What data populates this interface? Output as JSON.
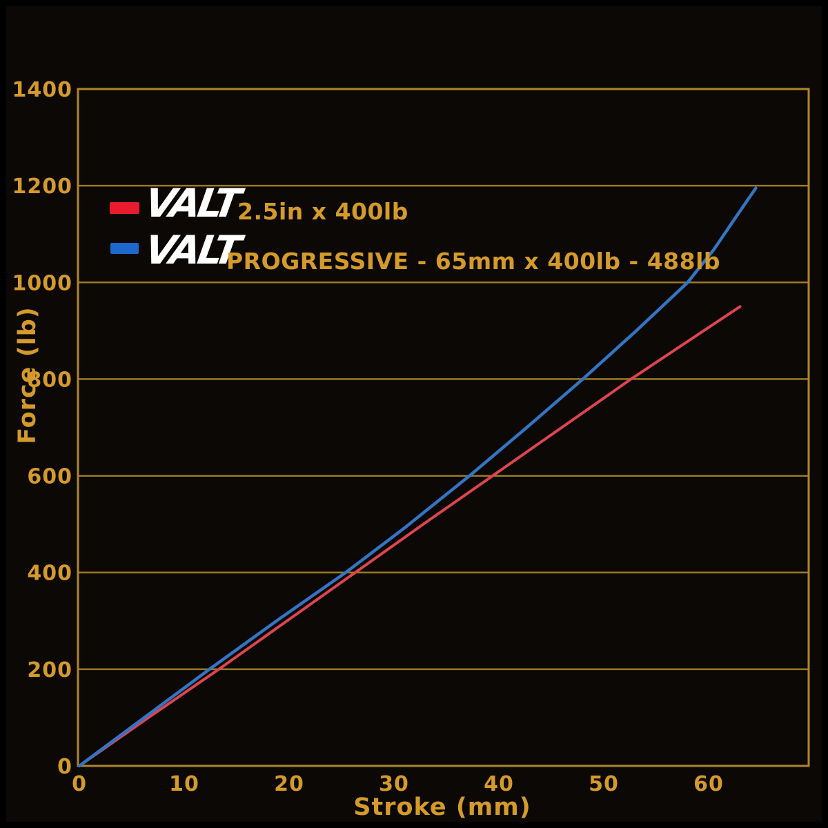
{
  "figure": {
    "bg_color": "#0b0806",
    "frame_color": "#000000",
    "grid_color": "#9c7a24",
    "border_color": "#b18629",
    "label_color": "#d49a2b",
    "logo_color": "#ffffff"
  },
  "legend": {
    "items": [
      {
        "logo": "VALT",
        "label": "2.5in x 400lb",
        "swatch_color": "#ea1b2d",
        "line_color": "#dd454f"
      },
      {
        "logo": "VALT",
        "label": "PROGRESSIVE - 65mm x 400lb - 488lb",
        "swatch_color": "#1d68cb",
        "line_color": "#3474c2"
      }
    ]
  },
  "chart_data": {
    "type": "line",
    "title": "",
    "xlabel": "Stroke (mm)",
    "ylabel": "Force (lb)",
    "xlim": [
      0,
      69.5
    ],
    "ylim": [
      0,
      1400
    ],
    "x_ticks": [
      0,
      10,
      20,
      30,
      40,
      50,
      60
    ],
    "y_ticks": [
      0,
      200,
      400,
      600,
      800,
      1000,
      1200,
      1400
    ],
    "grid": "horizontal-only",
    "legend_position": "top-left-inside",
    "series": [
      {
        "name": "VALT 2.5in x 400lb",
        "color": "#dd454f",
        "points": [
          [
            0,
            0
          ],
          [
            6.6,
            100
          ],
          [
            13.3,
            200
          ],
          [
            19.8,
            300
          ],
          [
            26.3,
            400
          ],
          [
            32.8,
            500
          ],
          [
            39.4,
            600
          ],
          [
            46.0,
            700
          ],
          [
            52.6,
            800
          ],
          [
            58.0,
            878
          ],
          [
            63.0,
            950
          ]
        ]
      },
      {
        "name": "VALT PROGRESSIVE - 65mm x 400lb - 488lb",
        "color": "#3474c2",
        "points": [
          [
            0,
            0
          ],
          [
            6.2,
            100
          ],
          [
            12.4,
            200
          ],
          [
            19.0,
            303
          ],
          [
            25.4,
            400
          ],
          [
            31.0,
            492
          ],
          [
            37.2,
            600
          ],
          [
            42.5,
            697
          ],
          [
            48.0,
            800
          ],
          [
            53.0,
            898
          ],
          [
            58.0,
            1000
          ],
          [
            60.5,
            1068
          ],
          [
            62.5,
            1132
          ],
          [
            64.5,
            1195
          ]
        ]
      }
    ]
  }
}
